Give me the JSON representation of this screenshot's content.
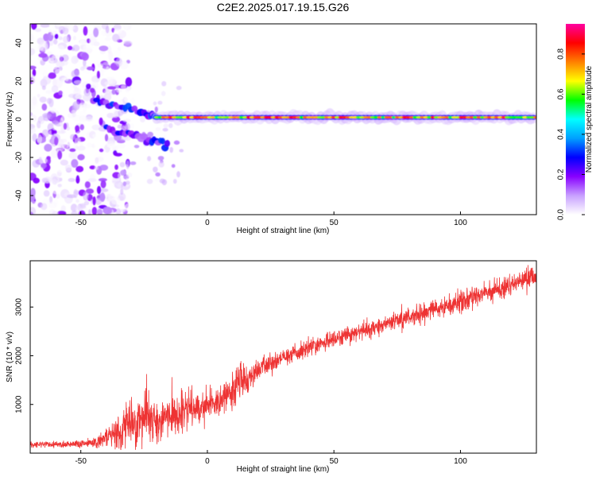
{
  "title": "C2E2.2025.017.19.15.G26",
  "colors": {
    "snr_line": "#ee3333",
    "background": "#ffffff",
    "axes": "#000000"
  },
  "colorbar": {
    "label": "Normalized spectral amplitude",
    "range": [
      0.0,
      0.95
    ],
    "ticks": [
      0.0,
      0.2,
      0.4,
      0.6,
      0.8
    ],
    "tick_labels": [
      "0.0",
      "0.2",
      "0.4",
      "0.6",
      "0.8"
    ],
    "colormap": [
      "#ffffff",
      "#c8a0ff",
      "#8800ff",
      "#0000ff",
      "#00a0ff",
      "#00ffff",
      "#00ff00",
      "#ffff00",
      "#ff8000",
      "#ff0000",
      "#ff00a0"
    ]
  },
  "chart_data": [
    {
      "type": "heatmap",
      "title": "",
      "xlabel": "Height of straight line (km)",
      "ylabel": "Frequency (Hz)",
      "xlim": [
        -70,
        130
      ],
      "ylim": [
        -50,
        50
      ],
      "xticks": [
        -50,
        0,
        50,
        100
      ],
      "xtick_labels": [
        "-50",
        "0",
        "50",
        "100"
      ],
      "yticks": [
        -40,
        -20,
        0,
        20,
        40
      ],
      "ytick_labels": [
        "-40",
        "-20",
        "0",
        "20",
        "40"
      ],
      "grid": false,
      "description_of_signal": {
        "main_ridge_frequency_hz": 1,
        "main_ridge_x_range_km": [
          -20,
          130
        ],
        "noisy_region_x_range_km": [
          -70,
          -35
        ],
        "upper_branch": [
          [
            -45,
            10
          ],
          [
            -35,
            7
          ],
          [
            -25,
            3
          ],
          [
            -20,
            2
          ]
        ],
        "lower_branch": [
          [
            -40,
            -5
          ],
          [
            -30,
            -8
          ],
          [
            -22,
            -11
          ],
          [
            -15,
            -14
          ]
        ]
      }
    },
    {
      "type": "line",
      "title": "",
      "xlabel": "Height of straight line (km)",
      "ylabel": "SNR (10 * v/v)",
      "xlim": [
        -70,
        130
      ],
      "ylim": [
        0,
        3950
      ],
      "xticks": [
        -50,
        0,
        50,
        100
      ],
      "xtick_labels": [
        "-50",
        "0",
        "50",
        "100"
      ],
      "yticks": [
        1000,
        2000,
        3000
      ],
      "ytick_labels": [
        "1000",
        "2000",
        "3000"
      ],
      "grid": false,
      "series": [
        {
          "x": [
            -70,
            -60,
            -50,
            -45,
            -40,
            -35,
            -30,
            -25,
            -20,
            -15,
            -10,
            -5,
            0,
            5,
            10,
            12,
            15,
            20,
            25,
            30,
            40,
            50,
            60,
            70,
            80,
            90,
            100,
            110,
            120,
            130
          ],
          "y": [
            180,
            180,
            200,
            220,
            300,
            420,
            650,
            700,
            650,
            750,
            850,
            900,
            1000,
            1100,
            1250,
            1500,
            1500,
            1700,
            1850,
            1950,
            2150,
            2350,
            2500,
            2650,
            2800,
            2950,
            3100,
            3300,
            3450,
            3650
          ],
          "noise_amplitude": [
            50,
            50,
            60,
            80,
            120,
            250,
            350,
            350,
            300,
            300,
            280,
            250,
            220,
            220,
            250,
            350,
            200,
            150,
            140,
            130,
            130,
            130,
            130,
            130,
            140,
            140,
            150,
            160,
            160,
            170
          ]
        }
      ]
    }
  ]
}
